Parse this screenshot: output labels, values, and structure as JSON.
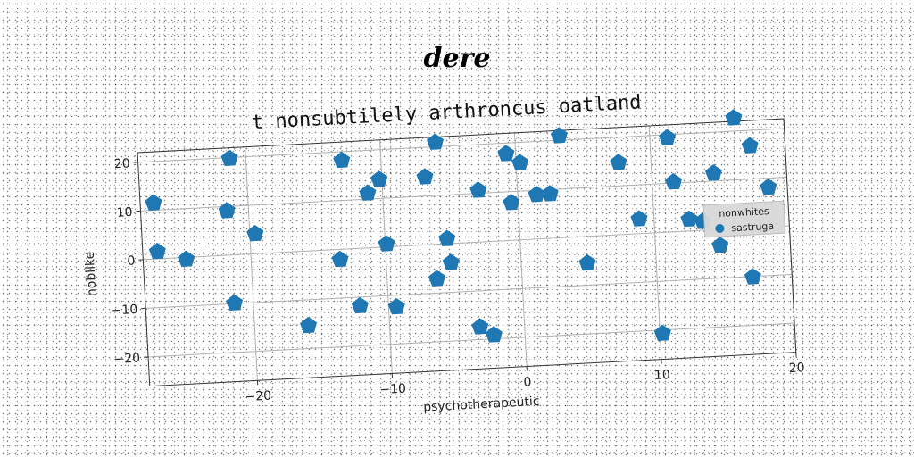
{
  "suptitle": "dere",
  "chart_data": {
    "type": "scatter",
    "title": "t nonsubtilely arthroncus oatland",
    "xlabel": "psychotherapeutic",
    "ylabel": "hoblike",
    "xlim": [
      -28,
      20
    ],
    "ylim": [
      -26,
      22
    ],
    "xticks": [
      -20,
      -10,
      0,
      10,
      20
    ],
    "yticks": [
      -20,
      -10,
      0,
      10,
      20
    ],
    "grid": true,
    "marker": "pentagon",
    "legend": {
      "title": "nonwhites",
      "placement": "right",
      "entries": [
        "sastruga"
      ]
    },
    "series": [
      {
        "name": "sastruga",
        "color": "#1f77b4",
        "points": [
          [
            -27.0,
            11.5
          ],
          [
            -26.9,
            1.5
          ],
          [
            -24.8,
            -0.4
          ],
          [
            -21.6,
            9.1
          ],
          [
            -21.2,
            19.8
          ],
          [
            -21.4,
            -9.9
          ],
          [
            -19.6,
            4.1
          ],
          [
            -16.0,
            -15.3
          ],
          [
            -13.4,
            -2.1
          ],
          [
            -12.9,
            18.2
          ],
          [
            -12.1,
            -11.8
          ],
          [
            -11.1,
            11.2
          ],
          [
            -10.2,
            13.9
          ],
          [
            -9.9,
            0.6
          ],
          [
            -9.4,
            -12.4
          ],
          [
            -6.8,
            13.9
          ],
          [
            -6.3,
            -7.1
          ],
          [
            -5.9,
            20.9
          ],
          [
            -5.4,
            1.0
          ],
          [
            -5.2,
            -3.9
          ],
          [
            -3.3,
            -17.4
          ],
          [
            -2.9,
            10.6
          ],
          [
            -2.3,
            -19.2
          ],
          [
            -0.7,
            17.8
          ],
          [
            -0.5,
            7.7
          ],
          [
            0.3,
            15.8
          ],
          [
            1.4,
            9.1
          ],
          [
            2.4,
            9.1
          ],
          [
            3.3,
            20.9
          ],
          [
            4.9,
            -5.5
          ],
          [
            7.6,
            14.8
          ],
          [
            8.9,
            3.0
          ],
          [
            10.2,
            -20.7
          ],
          [
            11.3,
            19.3
          ],
          [
            11.6,
            10.2
          ],
          [
            12.6,
            2.4
          ],
          [
            13.6,
            1.8
          ],
          [
            14.6,
            11.6
          ],
          [
            14.8,
            -3.3
          ],
          [
            16.3,
            22.7
          ],
          [
            17.1,
            -10.1
          ],
          [
            17.4,
            16.8
          ],
          [
            18.6,
            8.1
          ]
        ]
      }
    ]
  }
}
